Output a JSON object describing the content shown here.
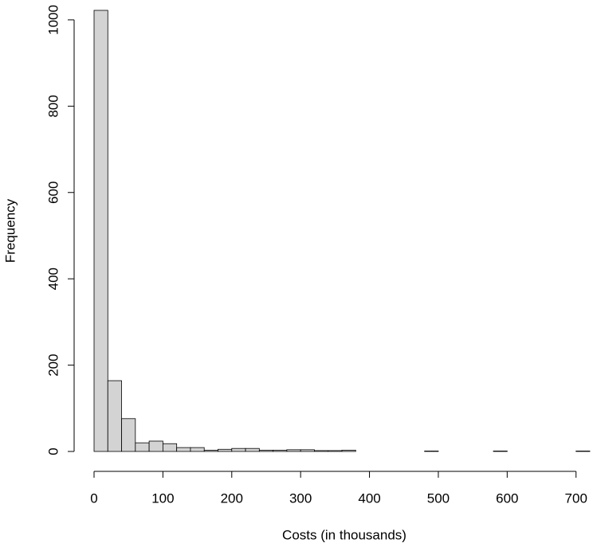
{
  "chart_data": {
    "type": "histogram",
    "xlabel": "Costs (in thousands)",
    "ylabel": "Frequency",
    "bins": [
      0,
      20,
      40,
      60,
      80,
      100,
      120,
      140,
      160,
      180,
      200,
      220,
      240,
      260,
      280,
      300,
      320,
      340,
      360,
      380,
      400,
      420,
      440,
      460,
      480,
      500,
      520,
      540,
      560,
      580,
      600,
      620,
      640,
      660,
      680,
      700,
      720
    ],
    "values": [
      1022,
      164,
      76,
      20,
      24,
      18,
      9,
      9,
      3,
      5,
      7,
      7,
      3,
      3,
      4,
      4,
      2,
      2,
      3,
      0,
      0,
      0,
      0,
      0,
      1,
      0,
      0,
      0,
      0,
      1,
      0,
      0,
      0,
      0,
      0,
      1
    ],
    "color": "#d3d3d3",
    "xlim": [
      0,
      720
    ],
    "ylim": [
      0,
      1022
    ],
    "xticks": [
      0,
      100,
      200,
      300,
      400,
      500,
      600,
      700
    ],
    "yticks": [
      0,
      200,
      400,
      600,
      800,
      1000
    ]
  }
}
